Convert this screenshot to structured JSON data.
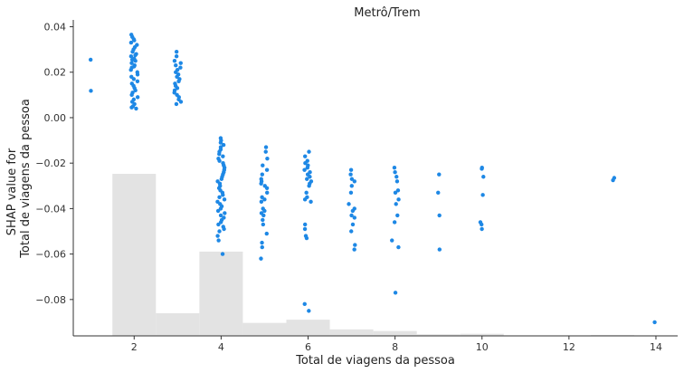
{
  "chart_data": {
    "type": "scatter",
    "title": "Metrô/Trem",
    "xlabel": "Total de viagens da pessoa",
    "ylabel": [
      "SHAP value for",
      "Total de viagens da pessoa"
    ],
    "xlim": [
      0.6,
      14.5
    ],
    "ylim": [
      -0.096,
      0.043
    ],
    "xticks": [
      2,
      4,
      6,
      8,
      10,
      12,
      14
    ],
    "xtick_labels": [
      "2",
      "4",
      "6",
      "8",
      "10",
      "12",
      "14"
    ],
    "yticks": [
      0.04,
      0.02,
      0.0,
      -0.02,
      -0.04,
      -0.06,
      -0.08
    ],
    "ytick_labels": [
      "0.04",
      "0.02",
      "0.00",
      "−0.02",
      "−0.04",
      "−0.06",
      "−0.08"
    ],
    "grid": false,
    "point_color": "#1e88e5",
    "histogram_color": "#e3e3e3",
    "histogram": {
      "bins": [
        [
          1.5,
          2.5
        ],
        [
          2.5,
          3.5
        ],
        [
          3.5,
          4.5
        ],
        [
          4.5,
          5.5
        ],
        [
          5.5,
          6.5
        ],
        [
          6.5,
          7.5
        ],
        [
          7.5,
          8.5
        ],
        [
          8.5,
          9.5
        ],
        [
          9.5,
          10.5
        ],
        [
          10.5,
          11.5
        ],
        [
          11.5,
          12.5
        ],
        [
          12.5,
          13.5
        ],
        [
          13.5,
          14.5
        ]
      ],
      "counts": [
        100,
        14,
        52,
        8,
        10,
        4,
        3,
        1,
        1.3,
        0.2,
        0.2,
        0.5,
        0.3
      ]
    },
    "points": [
      {
        "x": 1,
        "y": [
          0.0255,
          0.0118
        ]
      },
      {
        "x": 2,
        "y": [
          0.0365,
          0.0355,
          0.0345,
          0.034,
          0.033,
          0.032,
          0.031,
          0.03,
          0.029,
          0.028,
          0.0275,
          0.027,
          0.026,
          0.0255,
          0.025,
          0.024,
          0.023,
          0.0225,
          0.022,
          0.021,
          0.02,
          0.019,
          0.018,
          0.017,
          0.016,
          0.015,
          0.014,
          0.013,
          0.012,
          0.011,
          0.01,
          0.009,
          0.008,
          0.007,
          0.006,
          0.005,
          0.0045,
          0.004
        ]
      },
      {
        "x": 3,
        "y": [
          0.029,
          0.027,
          0.025,
          0.024,
          0.023,
          0.022,
          0.021,
          0.02,
          0.019,
          0.018,
          0.017,
          0.016,
          0.015,
          0.014,
          0.013,
          0.012,
          0.011,
          0.01,
          0.009,
          0.008,
          0.007,
          0.006
        ]
      },
      {
        "x": 4,
        "y": [
          -0.009,
          -0.01,
          -0.011,
          -0.012,
          -0.013,
          -0.014,
          -0.015,
          -0.016,
          -0.017,
          -0.018,
          -0.019,
          -0.02,
          -0.021,
          -0.022,
          -0.023,
          -0.024,
          -0.025,
          -0.026,
          -0.027,
          -0.028,
          -0.029,
          -0.03,
          -0.031,
          -0.032,
          -0.033,
          -0.034,
          -0.035,
          -0.036,
          -0.037,
          -0.038,
          -0.039,
          -0.04,
          -0.041,
          -0.042,
          -0.043,
          -0.044,
          -0.045,
          -0.046,
          -0.047,
          -0.048,
          -0.049,
          -0.05,
          -0.052,
          -0.054,
          -0.06
        ]
      },
      {
        "x": 5,
        "y": [
          -0.013,
          -0.015,
          -0.018,
          -0.021,
          -0.023,
          -0.025,
          -0.027,
          -0.028,
          -0.029,
          -0.03,
          -0.031,
          -0.033,
          -0.035,
          -0.036,
          -0.037,
          -0.04,
          -0.041,
          -0.042,
          -0.043,
          -0.045,
          -0.047,
          -0.051,
          -0.055,
          -0.057,
          -0.062
        ]
      },
      {
        "x": 6,
        "y": [
          -0.015,
          -0.017,
          -0.019,
          -0.02,
          -0.021,
          -0.022,
          -0.023,
          -0.024,
          -0.025,
          -0.026,
          -0.027,
          -0.028,
          -0.029,
          -0.03,
          -0.033,
          -0.035,
          -0.036,
          -0.037,
          -0.047,
          -0.049,
          -0.052,
          -0.053,
          -0.082,
          -0.085
        ]
      },
      {
        "x": 7,
        "y": [
          -0.023,
          -0.025,
          -0.027,
          -0.028,
          -0.03,
          -0.033,
          -0.038,
          -0.04,
          -0.041,
          -0.043,
          -0.044,
          -0.047,
          -0.05,
          -0.056,
          -0.058
        ]
      },
      {
        "x": 8,
        "y": [
          -0.022,
          -0.024,
          -0.026,
          -0.028,
          -0.032,
          -0.033,
          -0.036,
          -0.038,
          -0.043,
          -0.046,
          -0.054,
          -0.057,
          -0.077
        ]
      },
      {
        "x": 9,
        "y": [
          -0.025,
          -0.033,
          -0.043,
          -0.058
        ]
      },
      {
        "x": 10,
        "y": [
          -0.022,
          -0.0225,
          -0.026,
          -0.034,
          -0.046,
          -0.047,
          -0.049
        ]
      },
      {
        "x": 13,
        "y": [
          -0.0265,
          -0.0275
        ]
      },
      {
        "x": 14,
        "y": [
          -0.09
        ]
      }
    ]
  }
}
